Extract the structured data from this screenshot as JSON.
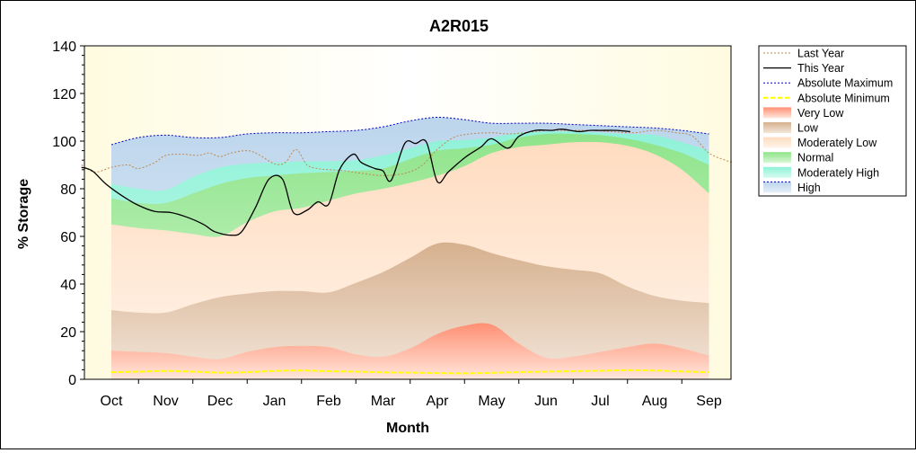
{
  "chart_data": {
    "type": "area",
    "title": "A2R015",
    "xlabel": "Month",
    "ylabel": "% Storage",
    "ylim": [
      0,
      140
    ],
    "yticks": [
      0,
      20,
      40,
      60,
      80,
      100,
      120,
      140
    ],
    "months": [
      "Oct",
      "Nov",
      "Dec",
      "Jan",
      "Feb",
      "Mar",
      "Apr",
      "May",
      "Jun",
      "Jul",
      "Aug",
      "Sep"
    ],
    "legend_position": "right",
    "legend": [
      "Last Year",
      "This Year",
      "Absolute Maximum",
      "Absolute Minimum",
      "Very Low",
      "Low",
      "Moderately Low",
      "Normal",
      "Moderately High",
      "High"
    ],
    "colors": {
      "last_year": "#c08850",
      "this_year": "#000000",
      "abs_max": "#0000cc",
      "abs_min": "#ffff00",
      "very_low": "#ff9a80",
      "low": "#d9b89a",
      "moderately_low": "#ffe2c9",
      "normal": "#9de89a",
      "moderately_high": "#9ff5df",
      "high": "#c8dcef",
      "plot_bg": "#fffde6"
    },
    "band_x": [
      0,
      0.5,
      1,
      1.5,
      2,
      2.5,
      3,
      3.5,
      4,
      4.5,
      5,
      5.5,
      6,
      6.5,
      7,
      7.5,
      8,
      8.5,
      9,
      9.5,
      10,
      10.5,
      11
    ],
    "bands": {
      "very_low": [
        12,
        11.5,
        11,
        9.5,
        8.5,
        11.5,
        13.5,
        14,
        13.5,
        10.5,
        9.5,
        13,
        19,
        22.5,
        23,
        15,
        9,
        9.5,
        11.5,
        13.5,
        15,
        13,
        10
      ],
      "low": [
        29,
        28,
        28,
        31.5,
        34.5,
        36,
        37,
        37,
        36.5,
        40.5,
        45,
        51,
        57,
        56.5,
        53,
        50,
        47.5,
        46,
        44.5,
        39,
        35,
        33,
        32
      ],
      "moderately_low": [
        65,
        63.5,
        62.5,
        61,
        60,
        66,
        70.5,
        72,
        75,
        78,
        80,
        82.5,
        85.5,
        89.5,
        95,
        97.5,
        98.5,
        99.5,
        99.5,
        98,
        94.5,
        88,
        78
      ],
      "normal": [
        76,
        74,
        74,
        78,
        82,
        84.5,
        85.5,
        86.5,
        87,
        87.5,
        88.5,
        92.5,
        96,
        97,
        98.5,
        101.5,
        103,
        103,
        102.5,
        101,
        98.5,
        95,
        90
      ],
      "moderately_high": [
        82,
        80,
        79.5,
        85,
        89,
        90.5,
        91,
        91.5,
        91.5,
        92,
        94,
        97,
        100,
        100.5,
        101.5,
        103.5,
        104,
        104,
        103.5,
        103,
        102.5,
        99.5,
        96
      ],
      "high": [
        98.5,
        101.5,
        102.5,
        101.5,
        101.5,
        103,
        103.5,
        103.5,
        104,
        104.5,
        106,
        108.5,
        110,
        109,
        107.5,
        107.5,
        107.5,
        107,
        106.5,
        106,
        105.5,
        104.5,
        103
      ]
    },
    "abs_min": [
      3,
      3.2,
      3.5,
      3.2,
      2.8,
      3,
      3.5,
      3.7,
      3.4,
      3.2,
      2.9,
      2.8,
      2.6,
      2.5,
      2.7,
      3,
      3.2,
      3.4,
      3.6,
      3.8,
      3.7,
      3.3,
      3.0
    ],
    "last_year": {
      "x": [
        -0.55,
        -0.3,
        0,
        0.3,
        0.5,
        0.8,
        1,
        1.3,
        1.6,
        1.8,
        2,
        2.2,
        2.5,
        2.7,
        3,
        3.2,
        3.4,
        3.6,
        3.8,
        4,
        4.3,
        4.6,
        5,
        5.4,
        5.7,
        6,
        6.3,
        6.6,
        7,
        7.3,
        7.6,
        8,
        8.4,
        8.8,
        9.2,
        9.6,
        10,
        10.4,
        10.7,
        11,
        11.3,
        11.45
      ],
      "y": [
        90,
        87,
        89,
        90,
        88.5,
        91,
        94,
        94.5,
        94,
        95,
        93.5,
        95,
        96,
        94.5,
        90.5,
        91,
        96.5,
        90,
        88.5,
        88,
        87.5,
        86.5,
        85.5,
        86.5,
        89.5,
        96.5,
        101.5,
        103,
        103.5,
        103,
        103.5,
        104.5,
        104.5,
        104.5,
        104,
        103.5,
        104.5,
        103.5,
        102,
        95,
        92,
        91
      ]
    },
    "this_year": {
      "x": [
        -0.55,
        -0.35,
        -0.1,
        0.2,
        0.5,
        0.8,
        1.1,
        1.4,
        1.7,
        1.9,
        2.2,
        2.4,
        2.65,
        2.9,
        3.15,
        3.35,
        3.6,
        3.8,
        4,
        4.2,
        4.45,
        4.6,
        4.85,
        5,
        5.15,
        5.4,
        5.6,
        5.8,
        6,
        6.2,
        6.5,
        6.8,
        7,
        7.3,
        7.5,
        7.8,
        8.1,
        8.3,
        8.6,
        8.8,
        9,
        9.3,
        9.55
      ],
      "y": [
        89,
        87.5,
        82,
        77,
        73,
        70.5,
        70,
        68,
        65,
        62,
        60.5,
        62,
        72,
        84,
        84,
        70,
        71,
        74.5,
        73.5,
        88,
        94.5,
        91,
        88.5,
        87.5,
        83.5,
        99,
        99,
        99.5,
        83,
        87,
        93,
        97.5,
        101,
        97,
        102,
        104.5,
        104.5,
        105,
        104,
        104.5,
        104.5,
        104.5,
        104
      ]
    },
    "abs_max": {
      "x": [
        0,
        0.5,
        1,
        1.5,
        2,
        2.5,
        3,
        3.5,
        4,
        4.5,
        5,
        5.5,
        6,
        6.5,
        7,
        7.5,
        8,
        8.5,
        9,
        9.5,
        10,
        10.5,
        11
      ],
      "y": [
        98.5,
        101.5,
        102.5,
        101.5,
        101.5,
        103,
        103.5,
        103.5,
        104,
        104.5,
        106,
        108.5,
        110,
        109,
        107.5,
        107.5,
        107.5,
        107,
        106.5,
        106,
        105.5,
        104.5,
        103
      ]
    }
  }
}
